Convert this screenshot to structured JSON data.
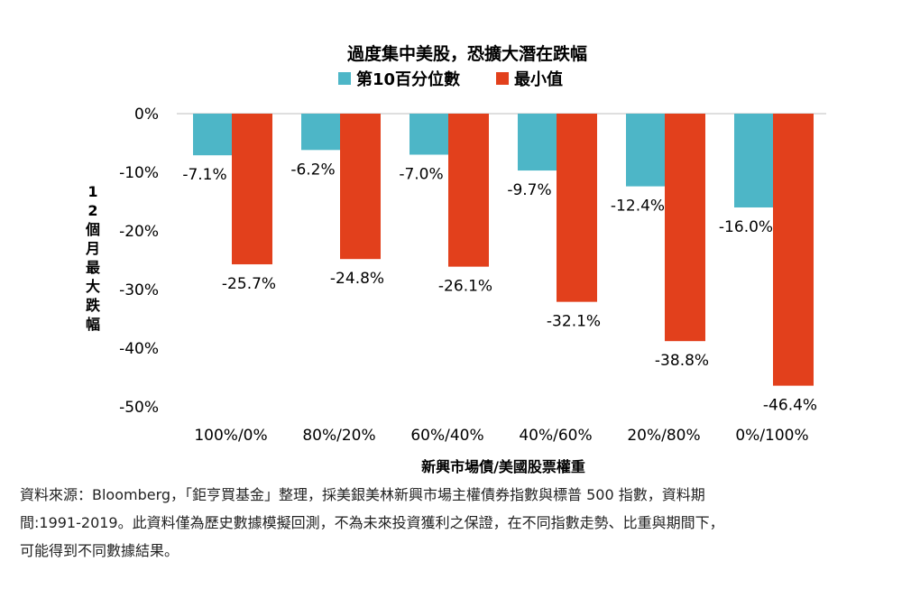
{
  "colors": {
    "p10": "#4db6c7",
    "min": "#e2401c",
    "axis": "#bfbfbf"
  },
  "chart_data": {
    "type": "bar",
    "title": "過度集中美股，恐擴大潛在跌幅",
    "xlabel": "新興市場債/美國股票權重",
    "ylabel": "12個月最大跌幅",
    "ylim": [
      -50,
      0
    ],
    "yticks": [
      0,
      -10,
      -20,
      -30,
      -40,
      -50
    ],
    "ytick_labels": [
      "0%",
      "-10%",
      "-20%",
      "-30%",
      "-40%",
      "-50%"
    ],
    "legend_position": "top",
    "categories": [
      "100%/0%",
      "80%/20%",
      "60%/40%",
      "40%/60%",
      "20%/80%",
      "0%/100%"
    ],
    "series": [
      {
        "name": "第10百分位數",
        "values": [
          -7.1,
          -6.2,
          -7.0,
          -9.7,
          -12.4,
          -16.0
        ],
        "labels": [
          "-7.1%",
          "-6.2%",
          "-7.0%",
          "-9.7%",
          "-12.4%",
          "-16.0%"
        ]
      },
      {
        "name": "最小值",
        "values": [
          -25.7,
          -24.8,
          -26.1,
          -32.1,
          -38.8,
          -46.4
        ],
        "labels": [
          "-25.7%",
          "-24.8%",
          "-26.1%",
          "-32.1%",
          "-38.8%",
          "-46.4%"
        ]
      }
    ]
  },
  "footnote": {
    "line1": "資料來源：Bloomberg，「鉅亨買基金」整理，採美銀美林新興市場主權債券指數與標普 500 指數，資料期",
    "line2": "間:1991-2019。此資料僅為歷史數據模擬回測，不為未來投資獲利之保證，在不同指數走勢、比重與期間下，",
    "line3": "可能得到不同數據結果。"
  }
}
